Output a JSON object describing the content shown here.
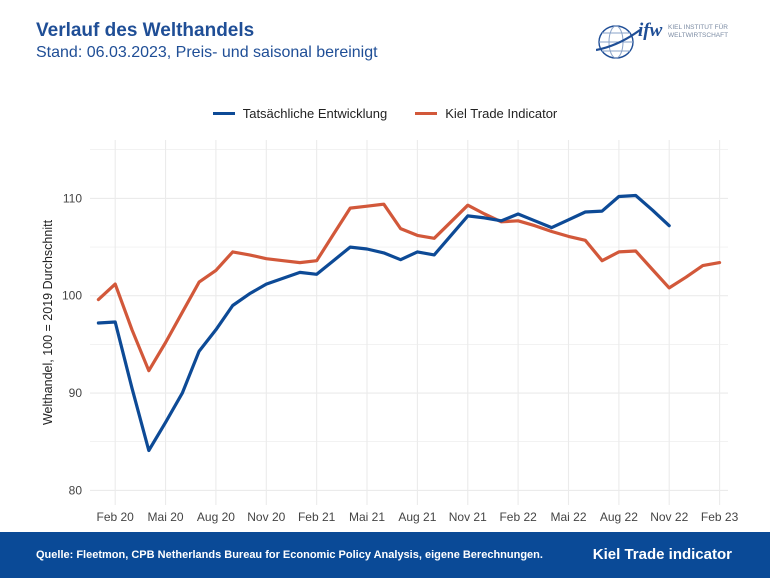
{
  "header": {
    "title": "Verlauf des Welthandels",
    "subtitle": "Stand: 06.03.2023, Preis- und saisonal bereinigt"
  },
  "logo": {
    "mark": "ifw",
    "line1": "KIEL INSTITUT FÜR",
    "line2": "WELTWIRTSCHAFT",
    "icon": "globe-icon"
  },
  "footer": {
    "source": "Quelle: Fleetmon, CPB Netherlands Bureau for Economic Policy Analysis, eigene Berechnungen.",
    "brand": "Kiel Trade indicator"
  },
  "colors": {
    "actual": "#0d4a96",
    "kiel": "#d2583a",
    "grid": "#ebebeb",
    "footer": "#0a4a97"
  },
  "chart_data": {
    "type": "line",
    "title": "Verlauf des Welthandels",
    "xlabel": "",
    "ylabel": "Welthandel, 100 = 2019 Durchschnitt",
    "ylim": [
      78.5,
      116
    ],
    "yticks": [
      80,
      90,
      100,
      110
    ],
    "xticks": [
      "Feb 20",
      "Mai 20",
      "Aug 20",
      "Nov 20",
      "Feb 21",
      "Mai 21",
      "Aug 21",
      "Nov 21",
      "Feb 22",
      "Mai 22",
      "Aug 22",
      "Nov 22",
      "Feb 23"
    ],
    "x": [
      "Jan 20",
      "Feb 20",
      "Mrz 20",
      "Apr 20",
      "Mai 20",
      "Jun 20",
      "Jul 20",
      "Aug 20",
      "Sep 20",
      "Okt 20",
      "Nov 20",
      "Dez 20",
      "Jan 21",
      "Feb 21",
      "Mrz 21",
      "Apr 21",
      "Mai 21",
      "Jun 21",
      "Jul 21",
      "Aug 21",
      "Sep 21",
      "Okt 21",
      "Nov 21",
      "Dez 21",
      "Jan 22",
      "Feb 22",
      "Mrz 22",
      "Apr 22",
      "Mai 22",
      "Jun 22",
      "Jul 22",
      "Aug 22",
      "Sep 22",
      "Okt 22",
      "Nov 22",
      "Dez 22",
      "Jan 23",
      "Feb 23"
    ],
    "grid": true,
    "legend": "top-center",
    "series": [
      {
        "name": "Tatsächliche Entwicklung",
        "color": "#0d4a96",
        "values": [
          97.2,
          97.3,
          90.5,
          84.1,
          87.0,
          90.0,
          94.3,
          96.5,
          99.0,
          100.2,
          101.2,
          101.8,
          102.4,
          102.2,
          103.6,
          105.0,
          104.8,
          104.4,
          103.7,
          104.5,
          104.2,
          106.2,
          108.2,
          108.0,
          107.7,
          108.4,
          107.7,
          107.0,
          107.8,
          108.6,
          108.7,
          110.2,
          110.3,
          108.8,
          107.2,
          null,
          null,
          null
        ]
      },
      {
        "name": "Kiel Trade Indicator",
        "color": "#d2583a",
        "values": [
          99.6,
          101.2,
          96.5,
          92.3,
          95.2,
          98.3,
          101.4,
          102.6,
          104.5,
          104.2,
          103.8,
          103.6,
          103.4,
          103.6,
          106.3,
          109.0,
          109.2,
          109.4,
          106.9,
          106.2,
          105.9,
          107.6,
          109.3,
          108.4,
          107.6,
          107.7,
          107.2,
          106.6,
          106.1,
          105.7,
          103.6,
          104.5,
          104.6,
          102.7,
          100.8,
          101.9,
          103.1,
          103.4
        ]
      }
    ]
  }
}
